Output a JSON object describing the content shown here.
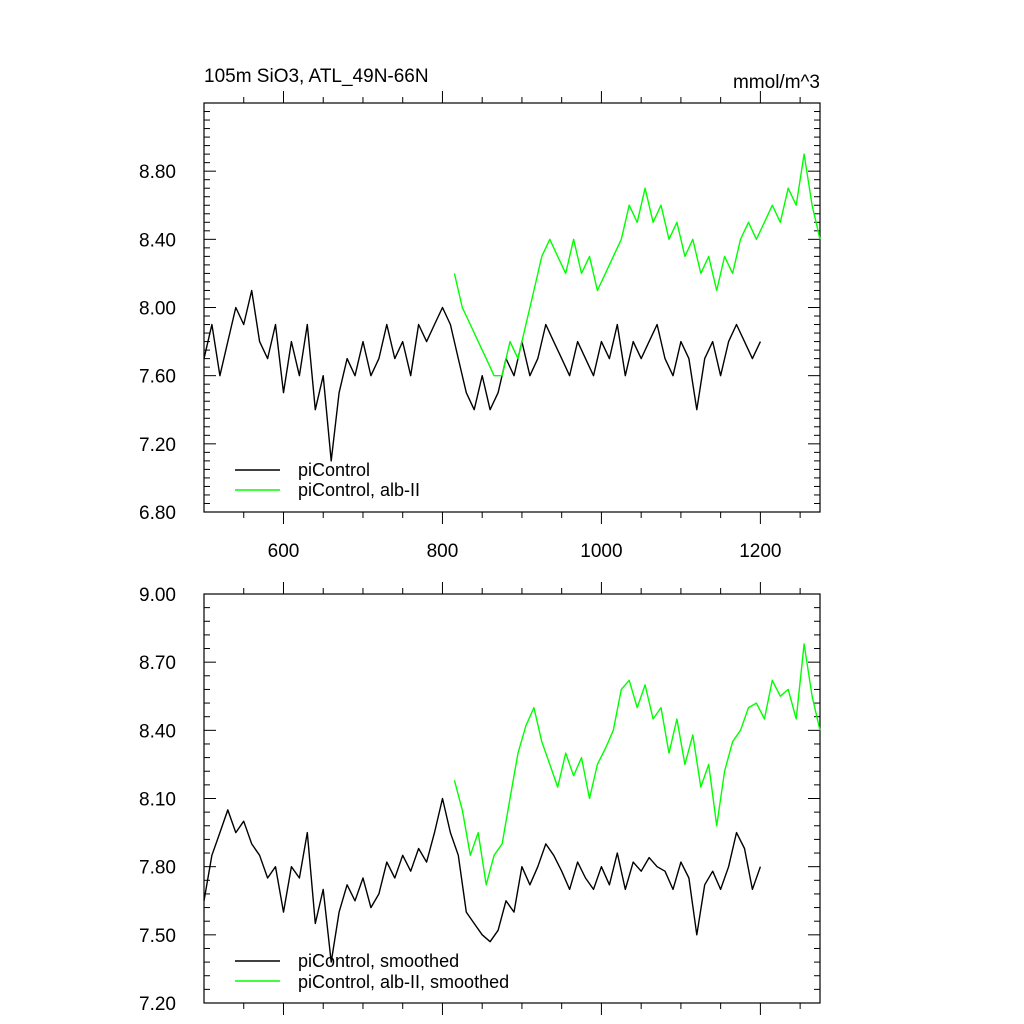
{
  "chart_data": [
    {
      "type": "line",
      "title": "105m SiO3, ATL_49N-66N",
      "units": "mmol/m^3",
      "xlabel": "",
      "ylabel": "",
      "xlim": [
        500,
        1275
      ],
      "ylim": [
        6.8,
        9.2
      ],
      "xticks": [
        600,
        800,
        1000,
        1200
      ],
      "xtick_labels": [
        "600",
        "800",
        "1000",
        "1200"
      ],
      "yticks": [
        6.8,
        7.2,
        7.6,
        8.0,
        8.4,
        8.8
      ],
      "ytick_labels": [
        "6.80",
        "7.20",
        "7.60",
        "8.00",
        "8.40",
        "8.80"
      ],
      "grid": false,
      "legend_position": "bottom-left",
      "colors": {
        "piControl": "#000000",
        "alb-II": "#00ff00"
      },
      "series": [
        {
          "name": "piControl",
          "color": "#000000",
          "x": [
            500,
            510,
            520,
            530,
            540,
            550,
            560,
            570,
            580,
            590,
            600,
            610,
            620,
            630,
            640,
            650,
            660,
            670,
            680,
            690,
            700,
            710,
            720,
            730,
            740,
            750,
            760,
            770,
            780,
            790,
            800,
            810,
            820,
            830,
            840,
            850,
            860,
            870,
            880,
            890,
            900,
            910,
            920,
            930,
            940,
            950,
            960,
            970,
            980,
            990,
            1000,
            1010,
            1020,
            1030,
            1040,
            1050,
            1060,
            1070,
            1080,
            1090,
            1100,
            1110,
            1120,
            1130,
            1140,
            1150,
            1160,
            1170,
            1180,
            1190,
            1200
          ],
          "y": [
            7.7,
            7.9,
            7.6,
            7.8,
            8.0,
            7.9,
            8.1,
            7.8,
            7.7,
            7.9,
            7.5,
            7.8,
            7.6,
            7.9,
            7.4,
            7.6,
            7.1,
            7.5,
            7.7,
            7.6,
            7.8,
            7.6,
            7.7,
            7.9,
            7.7,
            7.8,
            7.6,
            7.9,
            7.8,
            7.9,
            8.0,
            7.9,
            7.7,
            7.5,
            7.4,
            7.6,
            7.4,
            7.5,
            7.7,
            7.6,
            7.8,
            7.6,
            7.7,
            7.9,
            7.8,
            7.7,
            7.6,
            7.8,
            7.7,
            7.6,
            7.8,
            7.7,
            7.9,
            7.6,
            7.8,
            7.7,
            7.8,
            7.9,
            7.7,
            7.6,
            7.8,
            7.7,
            7.4,
            7.7,
            7.8,
            7.6,
            7.8,
            7.9,
            7.8,
            7.7,
            7.8
          ]
        },
        {
          "name": "piControl, alb-II",
          "color": "#00ff00",
          "x": [
            815,
            825,
            835,
            845,
            855,
            865,
            875,
            885,
            895,
            905,
            915,
            925,
            935,
            945,
            955,
            965,
            975,
            985,
            995,
            1005,
            1015,
            1025,
            1035,
            1045,
            1055,
            1065,
            1075,
            1085,
            1095,
            1105,
            1115,
            1125,
            1135,
            1145,
            1155,
            1165,
            1175,
            1185,
            1195,
            1205,
            1215,
            1225,
            1235,
            1245,
            1255,
            1265,
            1275
          ],
          "y": [
            8.2,
            8.0,
            7.9,
            7.8,
            7.7,
            7.6,
            7.6,
            7.8,
            7.7,
            7.9,
            8.1,
            8.3,
            8.4,
            8.3,
            8.2,
            8.4,
            8.2,
            8.3,
            8.1,
            8.2,
            8.3,
            8.4,
            8.6,
            8.5,
            8.7,
            8.5,
            8.6,
            8.4,
            8.5,
            8.3,
            8.4,
            8.2,
            8.3,
            8.1,
            8.3,
            8.2,
            8.4,
            8.5,
            8.4,
            8.5,
            8.6,
            8.5,
            8.7,
            8.6,
            8.9,
            8.6,
            8.4
          ]
        }
      ]
    },
    {
      "type": "line",
      "title": "",
      "xlabel": "",
      "ylabel": "",
      "xlim": [
        500,
        1275
      ],
      "ylim": [
        7.2,
        9.0
      ],
      "xticks": [
        600,
        800,
        1000,
        1200
      ],
      "xtick_labels": [],
      "yticks": [
        7.2,
        7.5,
        7.8,
        8.1,
        8.4,
        8.7,
        9.0
      ],
      "ytick_labels": [
        "7.20",
        "7.50",
        "7.80",
        "8.10",
        "8.40",
        "8.70",
        "9.00"
      ],
      "grid": false,
      "legend_position": "bottom-left",
      "series": [
        {
          "name": "piControl, smoothed",
          "color": "#000000",
          "x": [
            500,
            510,
            520,
            530,
            540,
            550,
            560,
            570,
            580,
            590,
            600,
            610,
            620,
            630,
            640,
            650,
            660,
            670,
            680,
            690,
            700,
            710,
            720,
            730,
            740,
            750,
            760,
            770,
            780,
            790,
            800,
            810,
            820,
            830,
            840,
            850,
            860,
            870,
            880,
            890,
            900,
            910,
            920,
            930,
            940,
            950,
            960,
            970,
            980,
            990,
            1000,
            1010,
            1020,
            1030,
            1040,
            1050,
            1060,
            1070,
            1080,
            1090,
            1100,
            1110,
            1120,
            1130,
            1140,
            1150,
            1160,
            1170,
            1180,
            1190,
            1200
          ],
          "y": [
            7.65,
            7.85,
            7.95,
            8.05,
            7.95,
            8.0,
            7.9,
            7.85,
            7.75,
            7.8,
            7.6,
            7.8,
            7.75,
            7.95,
            7.55,
            7.7,
            7.38,
            7.6,
            7.72,
            7.65,
            7.75,
            7.62,
            7.68,
            7.82,
            7.75,
            7.85,
            7.78,
            7.88,
            7.82,
            7.95,
            8.1,
            7.95,
            7.85,
            7.6,
            7.55,
            7.5,
            7.47,
            7.52,
            7.65,
            7.6,
            7.8,
            7.72,
            7.8,
            7.9,
            7.85,
            7.78,
            7.7,
            7.82,
            7.75,
            7.7,
            7.8,
            7.72,
            7.86,
            7.7,
            7.82,
            7.78,
            7.84,
            7.8,
            7.78,
            7.7,
            7.82,
            7.75,
            7.5,
            7.72,
            7.78,
            7.7,
            7.8,
            7.95,
            7.88,
            7.7,
            7.8
          ]
        },
        {
          "name": "piControl, alb-II, smoothed",
          "color": "#00ff00",
          "x": [
            815,
            825,
            835,
            845,
            855,
            865,
            875,
            885,
            895,
            905,
            915,
            925,
            935,
            945,
            955,
            965,
            975,
            985,
            995,
            1005,
            1015,
            1025,
            1035,
            1045,
            1055,
            1065,
            1075,
            1085,
            1095,
            1105,
            1115,
            1125,
            1135,
            1145,
            1155,
            1165,
            1175,
            1185,
            1195,
            1205,
            1215,
            1225,
            1235,
            1245,
            1255,
            1265,
            1275
          ],
          "y": [
            8.18,
            8.05,
            7.85,
            7.95,
            7.72,
            7.85,
            7.9,
            8.1,
            8.3,
            8.42,
            8.5,
            8.35,
            8.25,
            8.15,
            8.3,
            8.2,
            8.28,
            8.1,
            8.25,
            8.32,
            8.4,
            8.58,
            8.62,
            8.5,
            8.6,
            8.45,
            8.5,
            8.3,
            8.45,
            8.25,
            8.38,
            8.15,
            8.25,
            7.98,
            8.22,
            8.35,
            8.4,
            8.5,
            8.52,
            8.45,
            8.62,
            8.55,
            8.58,
            8.45,
            8.78,
            8.55,
            8.4
          ]
        }
      ]
    }
  ]
}
